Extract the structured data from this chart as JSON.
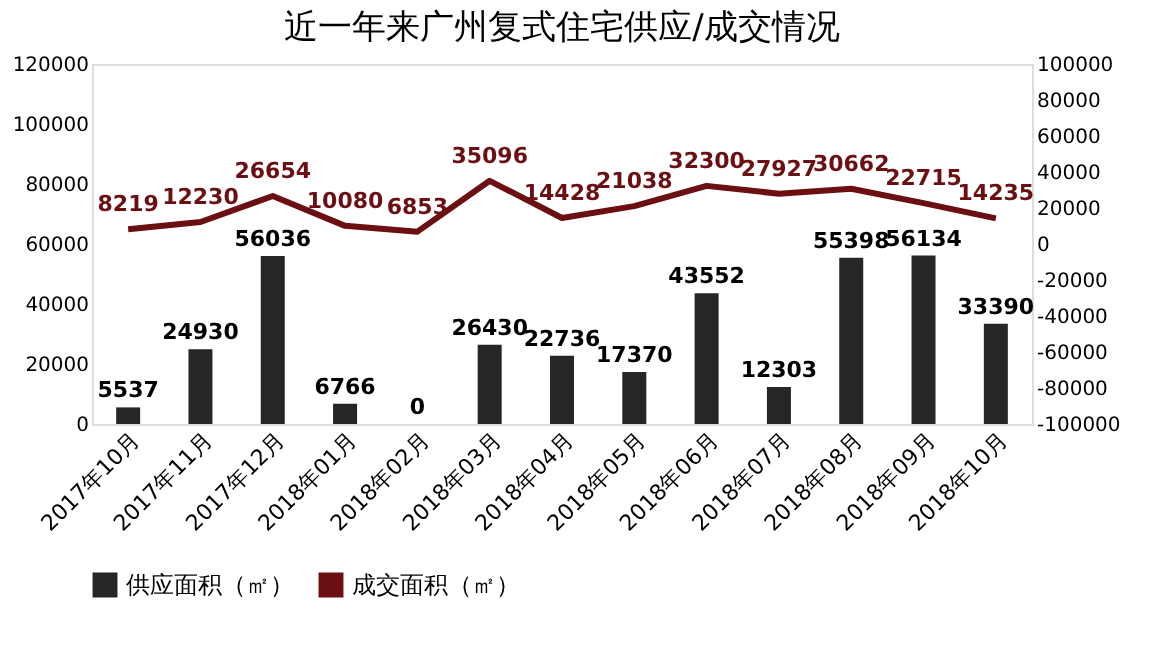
{
  "chart_data": {
    "type": "bar",
    "title": "近一年来广州复式住宅供应/成交情况",
    "categories": [
      "2017年10月",
      "2017年11月",
      "2017年12月",
      "2018年01月",
      "2018年02月",
      "2018年03月",
      "2018年04月",
      "2018年05月",
      "2018年06月",
      "2018年07月",
      "2018年08月",
      "2018年09月",
      "2018年10月"
    ],
    "series": [
      {
        "name": "供应面积（㎡）",
        "color": "#262626",
        "values": [
          5537,
          24930,
          56036,
          6766,
          0,
          26430,
          22736,
          17370,
          43552,
          12303,
          55398,
          56134,
          33390
        ]
      },
      {
        "name": "成交面积（㎡）",
        "color": "#6b0f12",
        "type": "line",
        "axis": "y2",
        "values": [
          8219,
          12230,
          26654,
          10080,
          6853,
          35096,
          14428,
          21038,
          32300,
          27927,
          30662,
          22715,
          14235
        ]
      }
    ],
    "ylim": [
      0,
      120000
    ],
    "yticks": [
      0,
      20000,
      40000,
      60000,
      80000,
      100000,
      120000
    ],
    "y2lim": [
      -100000,
      100000
    ],
    "y2ticks": [
      -100000,
      -80000,
      -60000,
      -40000,
      -20000,
      0,
      20000,
      40000,
      60000,
      80000,
      100000
    ],
    "data_labels": true,
    "grid": false,
    "legend": "bottom",
    "marker": "none",
    "line_style": "solid"
  }
}
